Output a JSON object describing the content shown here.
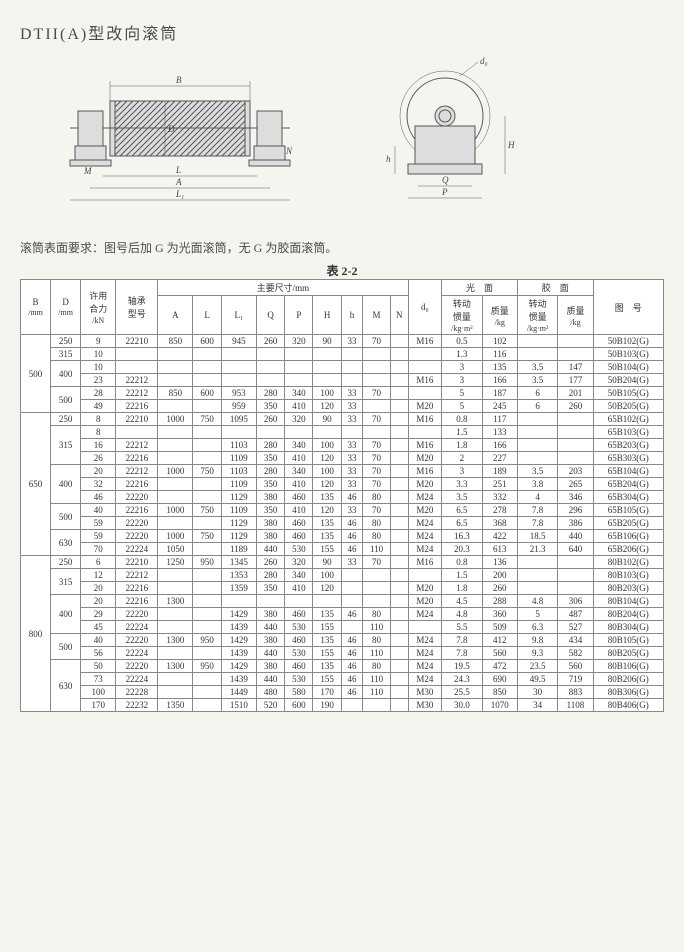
{
  "title": "DTII(A)型改向滚筒",
  "note": "滚筒表面要求：图号后加 G 为光面滚筒，无 G 为胶面滚筒。",
  "table_caption": "表 2-2",
  "diagram_labels": {
    "B": "B",
    "D": "D",
    "L": "L",
    "L1": "L₁",
    "A": "A",
    "M": "M",
    "N": "N",
    "d0": "d₀",
    "Q": "Q",
    "P": "P",
    "H": "H",
    "h": "h"
  },
  "header": {
    "B": "B",
    "B_unit": "/mm",
    "D": "D",
    "D_unit": "/mm",
    "load": "许用",
    "load2": "合力",
    "load_unit": "/kN",
    "bearing": "轴承",
    "bearing2": "型号",
    "main_dims": "主要尺寸/mm",
    "A": "A",
    "L": "L",
    "L1": "L₁",
    "Q": "Q",
    "P": "P",
    "H": "H",
    "h": "h",
    "M": "M",
    "N": "N",
    "d0": "d₀",
    "smooth": "光　面",
    "rubber": "胶　面",
    "inertia": "转动",
    "inertia2": "惯量",
    "inertia_unit": "/kg·m²",
    "mass": "质量",
    "mass_unit": "/kg",
    "drawing": "图　号"
  },
  "rows": [
    {
      "B": "500",
      "D": "250",
      "kN": "9",
      "bearing": "22210",
      "A": "850",
      "L": "600",
      "L1": "945",
      "Q": "260",
      "P": "320",
      "H": "90",
      "h": "33",
      "M": "70",
      "N": "",
      "d0": "M16",
      "s_i": "0.5",
      "s_m": "102",
      "r_i": "",
      "r_m": "",
      "code": "50B102(G)"
    },
    {
      "B": "",
      "D": "315",
      "kN": "10",
      "bearing": "",
      "A": "",
      "L": "",
      "L1": "",
      "Q": "",
      "P": "",
      "H": "",
      "h": "",
      "M": "",
      "N": "",
      "d0": "",
      "s_i": "1.3",
      "s_m": "116",
      "r_i": "",
      "r_m": "",
      "code": "50B103(G)"
    },
    {
      "B": "",
      "D": "400",
      "kN": "10",
      "bearing": "",
      "A": "",
      "L": "",
      "L1": "",
      "Q": "",
      "P": "",
      "H": "",
      "h": "",
      "M": "",
      "N": "",
      "d0": "",
      "s_i": "3",
      "s_m": "135",
      "r_i": "3.5",
      "r_m": "147",
      "code": "50B104(G)"
    },
    {
      "B": "",
      "D": "",
      "kN": "23",
      "bearing": "22212",
      "A": "",
      "L": "",
      "L1": "",
      "Q": "",
      "P": "",
      "H": "",
      "h": "",
      "M": "",
      "N": "",
      "d0": "M16",
      "s_i": "3",
      "s_m": "166",
      "r_i": "3.5",
      "r_m": "177",
      "code": "50B204(G)"
    },
    {
      "B": "",
      "D": "500",
      "kN": "28",
      "bearing": "22212",
      "A": "850",
      "L": "600",
      "L1": "953",
      "Q": "280",
      "P": "340",
      "H": "100",
      "h": "33",
      "M": "70",
      "N": "",
      "d0": "",
      "s_i": "5",
      "s_m": "187",
      "r_i": "6",
      "r_m": "201",
      "code": "50B105(G)"
    },
    {
      "B": "",
      "D": "",
      "kN": "49",
      "bearing": "22216",
      "A": "",
      "L": "",
      "L1": "959",
      "Q": "350",
      "P": "410",
      "H": "120",
      "h": "33",
      "M": "",
      "N": "",
      "d0": "M20",
      "s_i": "5",
      "s_m": "245",
      "r_i": "6",
      "r_m": "260",
      "code": "50B205(G)"
    },
    {
      "B": "650",
      "D": "250",
      "kN": "8",
      "bearing": "22210",
      "A": "1000",
      "L": "750",
      "L1": "1095",
      "Q": "260",
      "P": "320",
      "H": "90",
      "h": "33",
      "M": "70",
      "N": "",
      "d0": "M16",
      "s_i": "0.8",
      "s_m": "117",
      "r_i": "",
      "r_m": "",
      "code": "65B102(G)"
    },
    {
      "B": "",
      "D": "315",
      "kN": "8",
      "bearing": "",
      "A": "",
      "L": "",
      "L1": "",
      "Q": "",
      "P": "",
      "H": "",
      "h": "",
      "M": "",
      "N": "",
      "d0": "",
      "s_i": "1.5",
      "s_m": "133",
      "r_i": "",
      "r_m": "",
      "code": "65B103(G)"
    },
    {
      "B": "",
      "D": "",
      "kN": "16",
      "bearing": "22212",
      "A": "",
      "L": "",
      "L1": "1103",
      "Q": "280",
      "P": "340",
      "H": "100",
      "h": "33",
      "M": "70",
      "N": "",
      "d0": "M16",
      "s_i": "1.8",
      "s_m": "166",
      "r_i": "",
      "r_m": "",
      "code": "65B203(G)"
    },
    {
      "B": "",
      "D": "",
      "kN": "26",
      "bearing": "22216",
      "A": "",
      "L": "",
      "L1": "1109",
      "Q": "350",
      "P": "410",
      "H": "120",
      "h": "33",
      "M": "70",
      "N": "",
      "d0": "M20",
      "s_i": "2",
      "s_m": "227",
      "r_i": "",
      "r_m": "",
      "code": "65B303(G)"
    },
    {
      "B": "",
      "D": "400",
      "kN": "20",
      "bearing": "22212",
      "A": "1000",
      "L": "750",
      "L1": "1103",
      "Q": "280",
      "P": "340",
      "H": "100",
      "h": "33",
      "M": "70",
      "N": "",
      "d0": "M16",
      "s_i": "3",
      "s_m": "189",
      "r_i": "3.5",
      "r_m": "203",
      "code": "65B104(G)"
    },
    {
      "B": "",
      "D": "",
      "kN": "32",
      "bearing": "22216",
      "A": "",
      "L": "",
      "L1": "1109",
      "Q": "350",
      "P": "410",
      "H": "120",
      "h": "33",
      "M": "70",
      "N": "",
      "d0": "M20",
      "s_i": "3.3",
      "s_m": "251",
      "r_i": "3.8",
      "r_m": "265",
      "code": "65B204(G)"
    },
    {
      "B": "",
      "D": "",
      "kN": "46",
      "bearing": "22220",
      "A": "",
      "L": "",
      "L1": "1129",
      "Q": "380",
      "P": "460",
      "H": "135",
      "h": "46",
      "M": "80",
      "N": "",
      "d0": "M24",
      "s_i": "3.5",
      "s_m": "332",
      "r_i": "4",
      "r_m": "346",
      "code": "65B304(G)"
    },
    {
      "B": "",
      "D": "500",
      "kN": "40",
      "bearing": "22216",
      "A": "1000",
      "L": "750",
      "L1": "1109",
      "Q": "350",
      "P": "410",
      "H": "120",
      "h": "33",
      "M": "70",
      "N": "",
      "d0": "M20",
      "s_i": "6.5",
      "s_m": "278",
      "r_i": "7.8",
      "r_m": "296",
      "code": "65B105(G)"
    },
    {
      "B": "",
      "D": "",
      "kN": "59",
      "bearing": "22220",
      "A": "",
      "L": "",
      "L1": "1129",
      "Q": "380",
      "P": "460",
      "H": "135",
      "h": "46",
      "M": "80",
      "N": "",
      "d0": "M24",
      "s_i": "6.5",
      "s_m": "368",
      "r_i": "7.8",
      "r_m": "386",
      "code": "65B205(G)"
    },
    {
      "B": "",
      "D": "630",
      "kN": "59",
      "bearing": "22220",
      "A": "1000",
      "L": "750",
      "L1": "1129",
      "Q": "380",
      "P": "460",
      "H": "135",
      "h": "46",
      "M": "80",
      "N": "",
      "d0": "M24",
      "s_i": "16.3",
      "s_m": "422",
      "r_i": "18.5",
      "r_m": "440",
      "code": "65B106(G)"
    },
    {
      "B": "",
      "D": "",
      "kN": "70",
      "bearing": "22224",
      "A": "1050",
      "L": "",
      "L1": "1189",
      "Q": "440",
      "P": "530",
      "H": "155",
      "h": "46",
      "M": "110",
      "N": "",
      "d0": "M24",
      "s_i": "20.3",
      "s_m": "613",
      "r_i": "21.3",
      "r_m": "640",
      "code": "65B206(G)"
    },
    {
      "B": "800",
      "D": "250",
      "kN": "6",
      "bearing": "22210",
      "A": "1250",
      "L": "950",
      "L1": "1345",
      "Q": "260",
      "P": "320",
      "H": "90",
      "h": "33",
      "M": "70",
      "N": "",
      "d0": "M16",
      "s_i": "0.8",
      "s_m": "136",
      "r_i": "",
      "r_m": "",
      "code": "80B102(G)"
    },
    {
      "B": "",
      "D": "315",
      "kN": "12",
      "bearing": "22212",
      "A": "",
      "L": "",
      "L1": "1353",
      "Q": "280",
      "P": "340",
      "H": "100",
      "h": "",
      "M": "",
      "N": "",
      "d0": "",
      "s_i": "1.5",
      "s_m": "200",
      "r_i": "",
      "r_m": "",
      "code": "80B103(G)"
    },
    {
      "B": "",
      "D": "",
      "kN": "20",
      "bearing": "22216",
      "A": "",
      "L": "",
      "L1": "1359",
      "Q": "350",
      "P": "410",
      "H": "120",
      "h": "",
      "M": "",
      "N": "",
      "d0": "M20",
      "s_i": "1.8",
      "s_m": "260",
      "r_i": "",
      "r_m": "",
      "code": "80B203(G)"
    },
    {
      "B": "",
      "D": "400",
      "kN": "20",
      "bearing": "22216",
      "A": "1300",
      "L": "",
      "L1": "",
      "Q": "",
      "P": "",
      "H": "",
      "h": "",
      "M": "",
      "N": "",
      "d0": "M20",
      "s_i": "4.5",
      "s_m": "288",
      "r_i": "4.8",
      "r_m": "306",
      "code": "80B104(G)"
    },
    {
      "B": "",
      "D": "",
      "kN": "29",
      "bearing": "22220",
      "A": "",
      "L": "",
      "L1": "1429",
      "Q": "380",
      "P": "460",
      "H": "135",
      "h": "46",
      "M": "80",
      "N": "",
      "d0": "M24",
      "s_i": "4.8",
      "s_m": "360",
      "r_i": "5",
      "r_m": "487",
      "code": "80B204(G)"
    },
    {
      "B": "",
      "D": "",
      "kN": "45",
      "bearing": "22224",
      "A": "",
      "L": "",
      "L1": "1439",
      "Q": "440",
      "P": "530",
      "H": "155",
      "h": "",
      "M": "110",
      "N": "",
      "d0": "",
      "s_i": "5.5",
      "s_m": "509",
      "r_i": "6.3",
      "r_m": "527",
      "code": "80B304(G)"
    },
    {
      "B": "",
      "D": "500",
      "kN": "40",
      "bearing": "22220",
      "A": "1300",
      "L": "950",
      "L1": "1429",
      "Q": "380",
      "P": "460",
      "H": "135",
      "h": "46",
      "M": "80",
      "N": "",
      "d0": "M24",
      "s_i": "7.8",
      "s_m": "412",
      "r_i": "9.8",
      "r_m": "434",
      "code": "80B105(G)"
    },
    {
      "B": "",
      "D": "",
      "kN": "56",
      "bearing": "22224",
      "A": "",
      "L": "",
      "L1": "1439",
      "Q": "440",
      "P": "530",
      "H": "155",
      "h": "46",
      "M": "110",
      "N": "",
      "d0": "M24",
      "s_i": "7.8",
      "s_m": "560",
      "r_i": "9.3",
      "r_m": "582",
      "code": "80B205(G)"
    },
    {
      "B": "",
      "D": "630",
      "kN": "50",
      "bearing": "22220",
      "A": "1300",
      "L": "950",
      "L1": "1429",
      "Q": "380",
      "P": "460",
      "H": "135",
      "h": "46",
      "M": "80",
      "N": "",
      "d0": "M24",
      "s_i": "19.5",
      "s_m": "472",
      "r_i": "23.5",
      "r_m": "560",
      "code": "80B106(G)"
    },
    {
      "B": "",
      "D": "",
      "kN": "73",
      "bearing": "22224",
      "A": "",
      "L": "",
      "L1": "1439",
      "Q": "440",
      "P": "530",
      "H": "155",
      "h": "46",
      "M": "110",
      "N": "",
      "d0": "M24",
      "s_i": "24.3",
      "s_m": "690",
      "r_i": "49.5",
      "r_m": "719",
      "code": "80B206(G)"
    },
    {
      "B": "",
      "D": "",
      "kN": "100",
      "bearing": "22228",
      "A": "",
      "L": "",
      "L1": "1449",
      "Q": "480",
      "P": "580",
      "H": "170",
      "h": "46",
      "M": "110",
      "N": "",
      "d0": "M30",
      "s_i": "25.5",
      "s_m": "850",
      "r_i": "30",
      "r_m": "883",
      "code": "80B306(G)"
    },
    {
      "B": "",
      "D": "",
      "kN": "170",
      "bearing": "22232",
      "A": "1350",
      "L": "",
      "L1": "1510",
      "Q": "520",
      "P": "600",
      "H": "190",
      "h": "",
      "M": "",
      "N": "",
      "d0": "M30",
      "s_i": "30.0",
      "s_m": "1070",
      "r_i": "34",
      "r_m": "1108",
      "code": "80B406(G)"
    }
  ]
}
